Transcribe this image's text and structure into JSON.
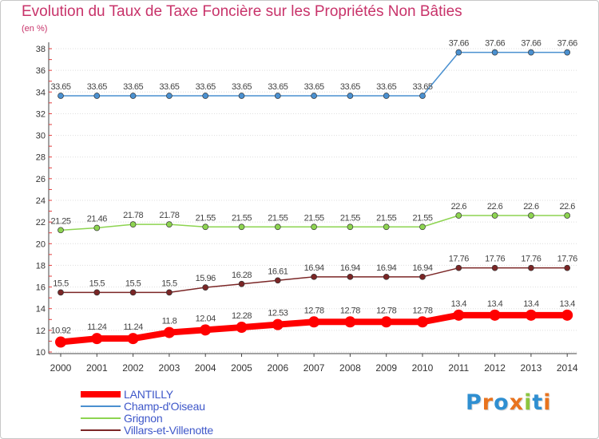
{
  "title": "Evolution du Taux de Taxe Foncière sur les Propriétés Non Bâties",
  "unit_label": "(en %)",
  "logo": {
    "letters": [
      {
        "ch": "P",
        "color": "#2f8fd1"
      },
      {
        "ch": "r",
        "color": "#e8731e"
      },
      {
        "ch": "o",
        "color": "#2f8fd1"
      },
      {
        "ch": "x",
        "color": "#e8731e"
      },
      {
        "ch": "i",
        "color": "#8cc63f"
      },
      {
        "ch": "t",
        "color": "#2f8fd1"
      },
      {
        "ch": "i",
        "color": "#e8731e"
      }
    ]
  },
  "chart_data": {
    "type": "line",
    "title": "Evolution du Taux de Taxe Foncière sur les Propriétés Non Bâties",
    "ylabel": "(en %)",
    "xlabel": "",
    "ylim": [
      10,
      38
    ],
    "yticks": [
      10,
      12,
      14,
      16,
      18,
      20,
      22,
      24,
      26,
      28,
      30,
      32,
      34,
      36,
      38
    ],
    "grid": "horizontal-dotted",
    "x": [
      "2000",
      "2001",
      "2002",
      "2003",
      "2004",
      "2005",
      "2006",
      "2007",
      "2008",
      "2009",
      "2010",
      "2011",
      "2012",
      "2013",
      "2014"
    ],
    "series": [
      {
        "name": "LANTILLY",
        "color": "#ff0000",
        "emphasis": "thick",
        "values": [
          10.92,
          11.24,
          11.24,
          11.8,
          12.04,
          12.28,
          12.53,
          12.78,
          12.78,
          12.78,
          12.78,
          13.4,
          13.4,
          13.4,
          13.4
        ],
        "labels": [
          "10.92",
          "11.24",
          "11.24",
          "11.8",
          "12.04",
          "12.28",
          "12.53",
          "12.78",
          "12.78",
          "12.78",
          "12.78",
          "13.4",
          "13.4",
          "13.4",
          "13.4"
        ]
      },
      {
        "name": "Champ-d'Oiseau",
        "color": "#4a90d0",
        "emphasis": "normal",
        "values": [
          33.65,
          33.65,
          33.65,
          33.65,
          33.65,
          33.65,
          33.65,
          33.65,
          33.65,
          33.65,
          33.65,
          37.66,
          37.66,
          37.66,
          37.66
        ],
        "labels": [
          "33.65",
          "33.65",
          "33.65",
          "33.65",
          "33.65",
          "33.65",
          "33.65",
          "33.65",
          "33.65",
          "33.65",
          "33.65",
          "37.66",
          "37.66",
          "37.66",
          "37.66"
        ]
      },
      {
        "name": "Grignon",
        "color": "#8dd450",
        "emphasis": "normal",
        "values": [
          21.25,
          21.46,
          21.78,
          21.78,
          21.55,
          21.55,
          21.55,
          21.55,
          21.55,
          21.55,
          21.55,
          22.6,
          22.6,
          22.6,
          22.6
        ],
        "labels": [
          "21.25",
          "21.46",
          "21.78",
          "21.78",
          "21.55",
          "21.55",
          "21.55",
          "21.55",
          "21.55",
          "21.55",
          "21.55",
          "22.6",
          "22.6",
          "22.6",
          "22.6"
        ]
      },
      {
        "name": "Villars-et-Villenotte",
        "color": "#7b2626",
        "emphasis": "normal",
        "values": [
          15.5,
          15.5,
          15.5,
          15.5,
          15.96,
          16.28,
          16.61,
          16.94,
          16.94,
          16.94,
          16.94,
          17.76,
          17.76,
          17.76,
          17.76
        ],
        "labels": [
          "15.5",
          "15.5",
          "15.5",
          "15.5",
          "15.96",
          "16.28",
          "16.61",
          "16.94",
          "16.94",
          "16.94",
          "16.94",
          "17.76",
          "17.76",
          "17.76",
          "17.76"
        ]
      }
    ]
  }
}
